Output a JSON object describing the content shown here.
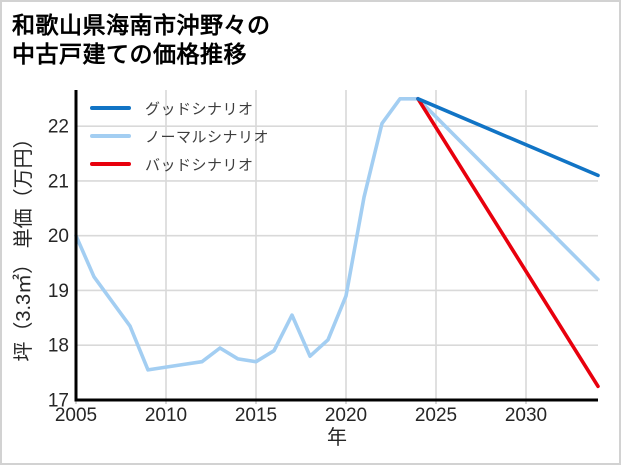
{
  "figure": {
    "title_line1": "和歌山県海南市沖野々の",
    "title_line2": "中古戸建ての価格推移"
  },
  "chart_data": {
    "type": "line",
    "title": "和歌山県海南市沖野々の中古戸建ての価格推移",
    "xlabel": "年",
    "ylabel": "坪（3.3㎡） 単価（万円）",
    "xlim": [
      2005,
      2034
    ],
    "ylim": [
      17,
      22.66
    ],
    "xticks": [
      2005,
      2010,
      2015,
      2020,
      2025,
      2030
    ],
    "yticks": [
      17,
      18,
      19,
      20,
      21,
      22
    ],
    "grid": true,
    "grid_color": "#d9d9d9",
    "legend_position": "upper-left",
    "series": [
      {
        "name": "グッドシナリオ",
        "color": "#1174c5",
        "x": [
          2024,
          2034
        ],
        "y": [
          22.5,
          21.1
        ]
      },
      {
        "name": "ノーマルシナリオ",
        "color": "#a3cef2",
        "x": [
          2005,
          2006,
          2007,
          2008,
          2009,
          2010,
          2011,
          2012,
          2013,
          2014,
          2015,
          2016,
          2017,
          2018,
          2019,
          2020,
          2021,
          2022,
          2023,
          2024,
          2034
        ],
        "y": [
          20.0,
          19.25,
          18.8,
          18.35,
          17.55,
          17.6,
          17.65,
          17.7,
          17.95,
          17.75,
          17.7,
          17.9,
          18.55,
          17.8,
          18.1,
          18.9,
          20.7,
          22.05,
          22.5,
          22.5,
          19.2
        ]
      },
      {
        "name": "バッドシナリオ",
        "color": "#e8000d",
        "x": [
          2024,
          2034
        ],
        "y": [
          22.5,
          17.25
        ]
      }
    ]
  }
}
